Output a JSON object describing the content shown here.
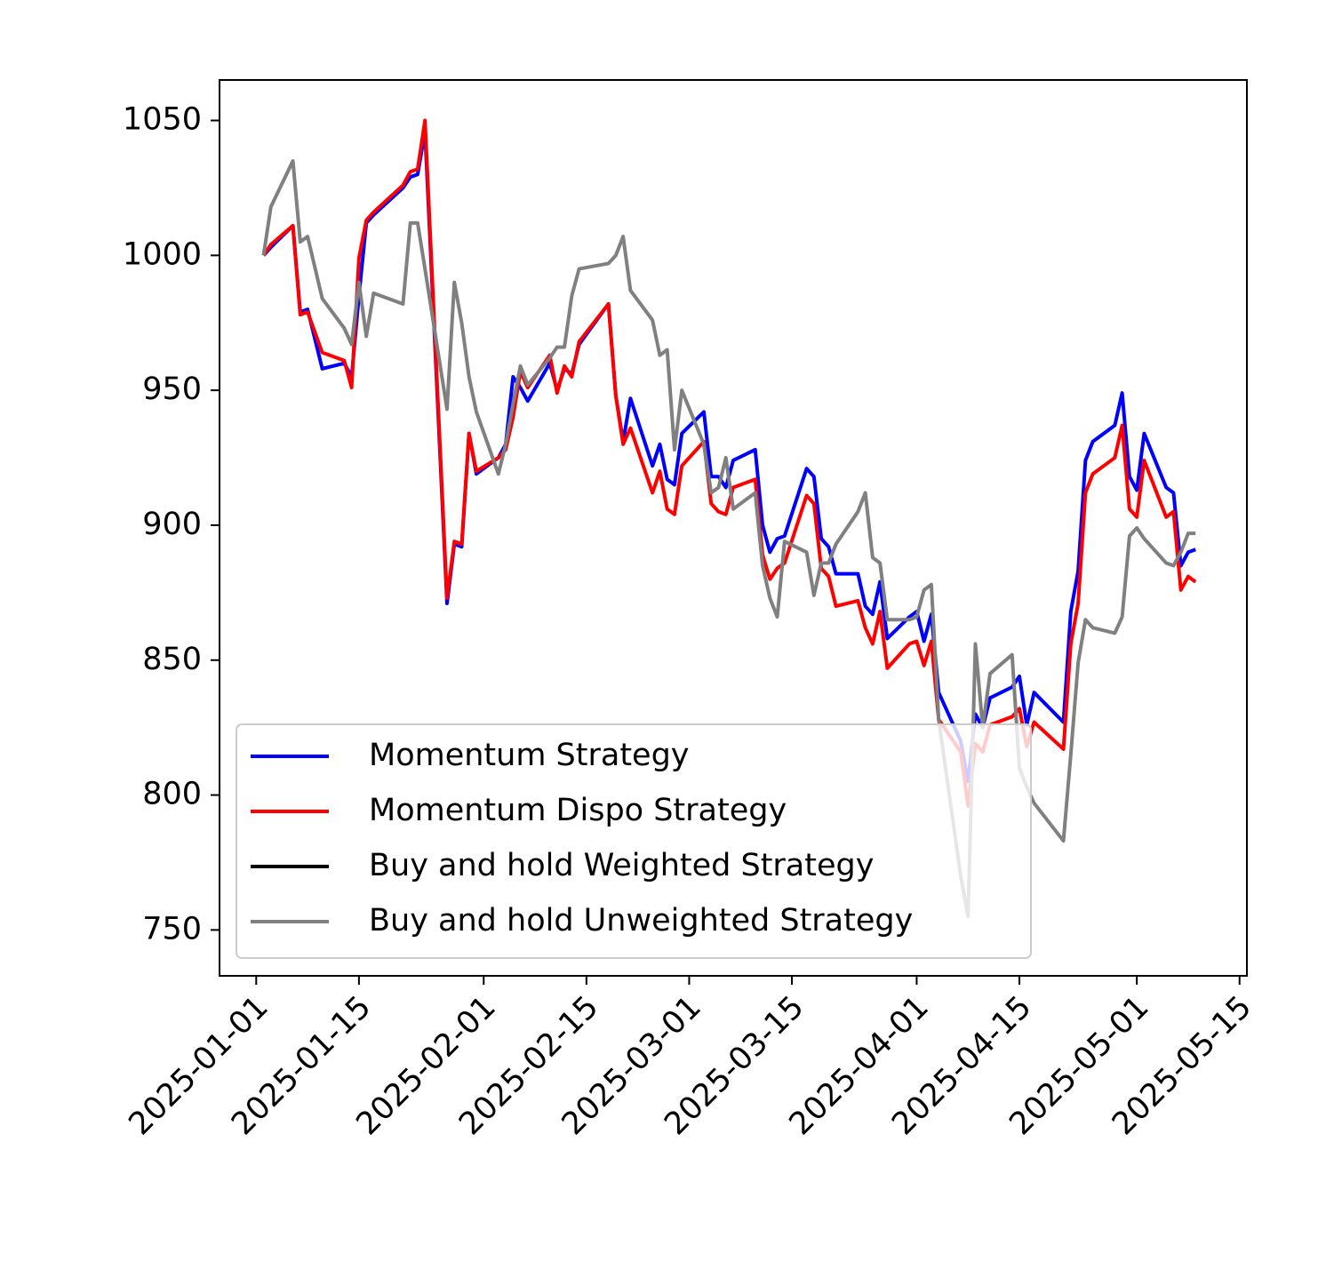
{
  "chart_data": {
    "type": "line",
    "x": [
      "2025-01-02",
      "2025-01-03",
      "2025-01-06",
      "2025-01-07",
      "2025-01-08",
      "2025-01-10",
      "2025-01-13",
      "2025-01-14",
      "2025-01-15",
      "2025-01-16",
      "2025-01-17",
      "2025-01-21",
      "2025-01-22",
      "2025-01-23",
      "2025-01-24",
      "2025-01-27",
      "2025-01-28",
      "2025-01-29",
      "2025-01-30",
      "2025-01-31",
      "2025-02-03",
      "2025-02-04",
      "2025-02-05",
      "2025-02-06",
      "2025-02-07",
      "2025-02-10",
      "2025-02-11",
      "2025-02-12",
      "2025-02-13",
      "2025-02-14",
      "2025-02-18",
      "2025-02-19",
      "2025-02-20",
      "2025-02-21",
      "2025-02-24",
      "2025-02-25",
      "2025-02-26",
      "2025-02-27",
      "2025-02-28",
      "2025-03-03",
      "2025-03-04",
      "2025-03-05",
      "2025-03-06",
      "2025-03-07",
      "2025-03-10",
      "2025-03-11",
      "2025-03-12",
      "2025-03-13",
      "2025-03-14",
      "2025-03-17",
      "2025-03-18",
      "2025-03-19",
      "2025-03-20",
      "2025-03-21",
      "2025-03-24",
      "2025-03-25",
      "2025-03-26",
      "2025-03-27",
      "2025-03-28",
      "2025-03-31",
      "2025-04-01",
      "2025-04-02",
      "2025-04-03",
      "2025-04-04",
      "2025-04-07",
      "2025-04-08",
      "2025-04-09",
      "2025-04-10",
      "2025-04-11",
      "2025-04-14",
      "2025-04-15",
      "2025-04-16",
      "2025-04-17",
      "2025-04-21",
      "2025-04-22",
      "2025-04-23",
      "2025-04-24",
      "2025-04-25",
      "2025-04-28",
      "2025-04-29",
      "2025-04-30",
      "2025-05-01",
      "2025-05-02",
      "2025-05-05",
      "2025-05-06",
      "2025-05-07",
      "2025-05-08",
      "2025-05-09"
    ],
    "series": [
      {
        "name": "Momentum Strategy",
        "color": "#0000ff",
        "values": [
          1000,
          1003,
          1011,
          979,
          980,
          958,
          960,
          955,
          985,
          1012,
          1015,
          1025,
          1029,
          1030,
          1046,
          871,
          893,
          892,
          934,
          919,
          925,
          930,
          955,
          951,
          946,
          960,
          950,
          958,
          956,
          967,
          982,
          948,
          931,
          947,
          922,
          930,
          917,
          915,
          934,
          942,
          918,
          918,
          914,
          924,
          928,
          900,
          890,
          895,
          896,
          921,
          918,
          895,
          892,
          882,
          882,
          870,
          867,
          879,
          858,
          866,
          868,
          857,
          867,
          838,
          820,
          805,
          830,
          825,
          836,
          840,
          844,
          826,
          838,
          827,
          868,
          883,
          924,
          931,
          937,
          949,
          918,
          913,
          934,
          914,
          912,
          885,
          890,
          891
        ]
      },
      {
        "name": "Momentum Dispo Strategy",
        "color": "#ff0000",
        "values": [
          1000,
          1004,
          1011,
          978,
          979,
          964,
          961,
          951,
          999,
          1013,
          1016,
          1026,
          1031,
          1032,
          1050,
          873,
          894,
          893,
          934,
          920,
          925,
          928,
          940,
          957,
          951,
          963,
          949,
          959,
          955,
          968,
          982,
          948,
          930,
          936,
          912,
          920,
          906,
          904,
          922,
          931,
          908,
          905,
          904,
          914,
          917,
          889,
          880,
          884,
          886,
          911,
          908,
          884,
          881,
          870,
          872,
          862,
          856,
          868,
          847,
          856,
          857,
          848,
          857,
          828,
          816,
          796,
          819,
          816,
          826,
          829,
          832,
          818,
          827,
          817,
          856,
          871,
          912,
          919,
          925,
          937,
          906,
          903,
          924,
          903,
          905,
          876,
          881,
          879
        ]
      },
      {
        "name": "Buy and hold Weighted Strategy",
        "color": "#000000",
        "values": [
          null,
          null,
          null,
          null,
          null,
          null,
          null,
          null,
          null,
          null,
          null,
          null,
          null,
          null,
          null,
          null,
          null,
          null,
          null,
          null,
          null,
          null,
          null,
          null,
          null,
          null,
          null,
          null,
          null,
          null,
          null,
          null,
          null,
          null,
          null,
          null,
          null,
          null,
          null,
          null,
          null,
          null,
          null,
          null,
          null,
          null,
          null,
          null,
          null,
          null,
          null,
          null,
          null,
          null,
          null,
          null,
          null,
          null,
          null,
          null,
          null,
          null,
          null,
          null,
          null,
          null,
          null,
          null,
          null,
          null,
          null,
          null,
          null,
          null,
          null,
          null,
          null,
          null,
          null,
          null,
          null,
          null,
          null,
          null,
          null,
          null,
          null,
          null
        ]
      },
      {
        "name": "Buy and hold Unweighted Strategy",
        "color": "#808080",
        "values": [
          1000,
          1018,
          1035,
          1005,
          1007,
          984,
          973,
          967,
          990,
          970,
          986,
          982,
          1012,
          1012,
          995,
          943,
          990,
          975,
          955,
          942,
          919,
          930,
          945,
          959,
          952,
          962,
          966,
          966,
          985,
          995,
          997,
          1000,
          1007,
          987,
          976,
          963,
          965,
          928,
          950,
          930,
          912,
          914,
          925,
          906,
          912,
          885,
          873,
          866,
          894,
          890,
          874,
          886,
          886,
          893,
          905,
          912,
          888,
          886,
          865,
          865,
          866,
          876,
          878,
          828,
          770,
          755,
          856,
          825,
          845,
          852,
          810,
          803,
          797,
          783,
          815,
          849,
          865,
          862,
          860,
          866,
          896,
          899,
          895,
          886,
          885,
          890,
          897,
          897
        ]
      }
    ],
    "xlim": [
      "2024-12-27",
      "2025-05-16"
    ],
    "xticks": [
      "2025-01-01",
      "2025-01-15",
      "2025-02-01",
      "2025-02-15",
      "2025-03-01",
      "2025-03-15",
      "2025-04-01",
      "2025-04-15",
      "2025-05-01",
      "2025-05-15"
    ],
    "ylim": [
      733,
      1065
    ],
    "yticks": [
      750,
      800,
      850,
      900,
      950,
      1000,
      1050
    ],
    "legend": "lower left"
  }
}
